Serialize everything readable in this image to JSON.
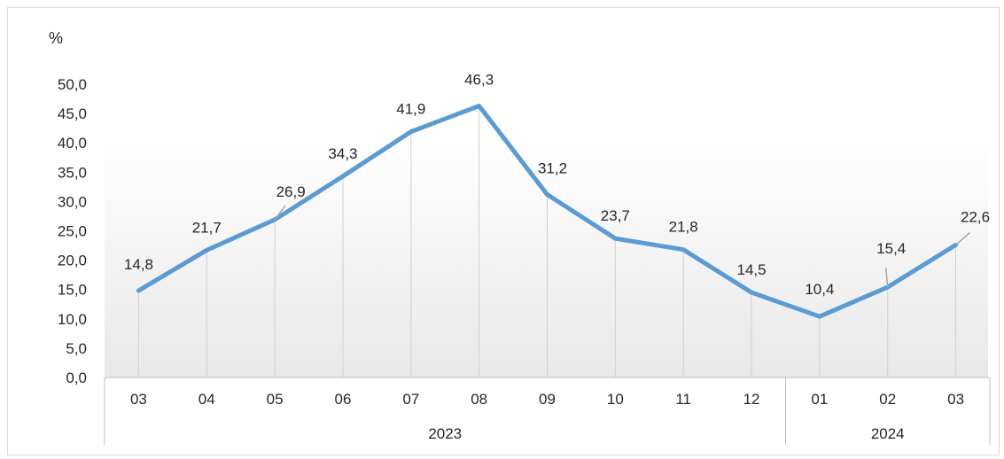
{
  "chart_data": {
    "type": "line",
    "unit_label": "%",
    "x": [
      "03",
      "04",
      "05",
      "06",
      "07",
      "08",
      "09",
      "10",
      "11",
      "12",
      "01",
      "02",
      "03"
    ],
    "year_groups": [
      {
        "label": "2023",
        "count": 10
      },
      {
        "label": "2024",
        "count": 3
      }
    ],
    "series": [
      {
        "values": [
          14.8,
          21.7,
          26.9,
          34.3,
          41.9,
          46.3,
          31.2,
          23.7,
          21.8,
          14.5,
          10.4,
          15.4,
          22.6
        ]
      }
    ],
    "data_labels": [
      "14,8",
      "21,7",
      "26,9",
      "34,3",
      "41,9",
      "46,3",
      "31,2",
      "23,7",
      "21,8",
      "14,5",
      "10,4",
      "15,4",
      "22,6"
    ],
    "y_ticks": [
      "0,0",
      "5,0",
      "10,0",
      "15,0",
      "20,0",
      "25,0",
      "30,0",
      "35,0",
      "40,0",
      "45,0",
      "50,0"
    ],
    "ylim": [
      0,
      50
    ],
    "line_color": "#5b9bd5",
    "grid": false,
    "legend": "none"
  }
}
